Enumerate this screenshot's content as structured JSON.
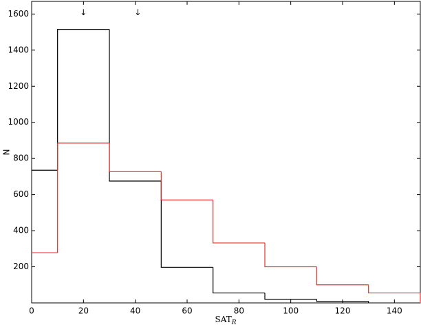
{
  "chart_data": {
    "type": "histogram",
    "xlabel": "SAT",
    "xlabel_subscript": "R",
    "ylabel": "N",
    "xlim": [
      0,
      150
    ],
    "ylim": [
      0,
      1670
    ],
    "xticks": [
      0,
      20,
      40,
      60,
      80,
      100,
      120,
      140
    ],
    "yticks": [
      200,
      400,
      600,
      800,
      1000,
      1200,
      1400,
      1600
    ],
    "series": [
      {
        "color": "#000000",
        "bins": [
          0,
          10,
          30,
          50,
          70,
          90,
          110,
          130
        ],
        "values": [
          735,
          1515,
          675,
          197,
          55,
          20,
          8
        ]
      },
      {
        "color": "#e8302a",
        "bins": [
          0,
          10,
          30,
          50,
          70,
          90,
          110,
          130,
          150
        ],
        "values": [
          278,
          885,
          727,
          570,
          332,
          200,
          100,
          55
        ]
      }
    ],
    "annotations": [
      {
        "x": 20,
        "text": "↓",
        "color": "#000000"
      },
      {
        "x": 41,
        "text": "↓",
        "color": "#e8302a"
      }
    ]
  }
}
